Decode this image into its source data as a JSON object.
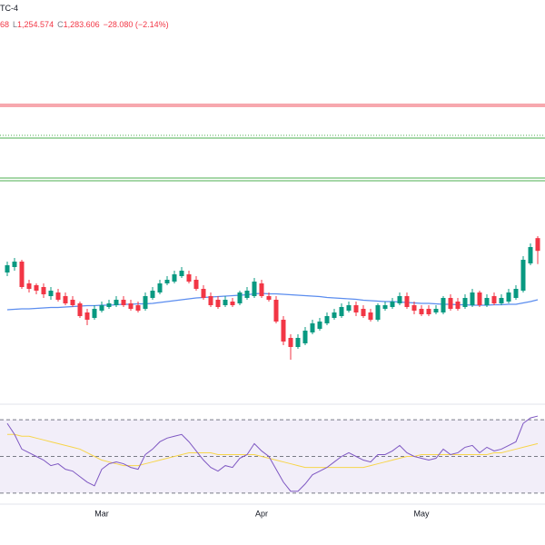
{
  "chart_data": [
    {
      "type": "candlestick",
      "timezone": "TC-4",
      "high_fragment": "68",
      "low_label": "L",
      "low_value": "1,254.574",
      "close_label": "C",
      "close_value": "1,283.606",
      "change": "−28.080 (−2.14%)",
      "up_color": "#089981",
      "down_color": "#f23645",
      "ylim": [
        956,
        1836
      ],
      "open": [
        1236,
        1248,
        1260,
        1212,
        1208,
        1204,
        1184,
        1192,
        1184,
        1176,
        1168,
        1148,
        1136,
        1152,
        1160,
        1164,
        1176,
        1168,
        1164,
        1156,
        1180,
        1192,
        1212,
        1216,
        1228,
        1232,
        1220,
        1200,
        1184,
        1176,
        1164,
        1172,
        1168,
        1180,
        1184,
        1212,
        1184,
        1176,
        1132,
        1092,
        1072,
        1080,
        1104,
        1112,
        1124,
        1136,
        1140,
        1152,
        1164,
        1156,
        1148,
        1132,
        1156,
        1160,
        1168,
        1184,
        1164,
        1156,
        1156,
        1148,
        1148,
        1180,
        1172,
        1160,
        1164,
        1192,
        1164,
        1184,
        1168,
        1172,
        1180,
        1196,
        1256,
        1311.686
      ],
      "high": [
        1260,
        1268,
        1264,
        1220,
        1212,
        1212,
        1204,
        1200,
        1192,
        1184,
        1172,
        1156,
        1164,
        1172,
        1176,
        1184,
        1184,
        1176,
        1172,
        1192,
        1204,
        1220,
        1228,
        1240,
        1248,
        1240,
        1228,
        1208,
        1192,
        1184,
        1184,
        1180,
        1196,
        1204,
        1224,
        1220,
        1192,
        1184,
        1140,
        1100,
        1100,
        1116,
        1132,
        1136,
        1148,
        1156,
        1168,
        1172,
        1172,
        1164,
        1156,
        1168,
        1172,
        1180,
        1192,
        1192,
        1172,
        1164,
        1164,
        1164,
        1184,
        1188,
        1180,
        1188,
        1200,
        1196,
        1188,
        1192,
        1188,
        1200,
        1208,
        1272,
        1300,
        1316
      ],
      "low": [
        1228,
        1240,
        1200,
        1192,
        1188,
        1180,
        1176,
        1172,
        1164,
        1160,
        1136,
        1120,
        1132,
        1148,
        1156,
        1160,
        1160,
        1152,
        1148,
        1152,
        1176,
        1188,
        1208,
        1212,
        1224,
        1212,
        1196,
        1176,
        1160,
        1156,
        1160,
        1160,
        1164,
        1176,
        1180,
        1180,
        1172,
        1124,
        1076,
        1044,
        1068,
        1076,
        1100,
        1108,
        1120,
        1132,
        1136,
        1148,
        1140,
        1136,
        1128,
        1128,
        1152,
        1156,
        1164,
        1156,
        1144,
        1140,
        1140,
        1144,
        1144,
        1152,
        1152,
        1156,
        1160,
        1160,
        1160,
        1164,
        1164,
        1168,
        1176,
        1192,
        1252,
        1254.574
      ],
      "close": [
        1252,
        1260,
        1204,
        1200,
        1196,
        1188,
        1196,
        1176,
        1168,
        1164,
        1140,
        1132,
        1156,
        1164,
        1168,
        1176,
        1164,
        1156,
        1152,
        1184,
        1196,
        1212,
        1220,
        1232,
        1240,
        1216,
        1200,
        1180,
        1164,
        1160,
        1176,
        1164,
        1192,
        1196,
        1216,
        1184,
        1176,
        1128,
        1084,
        1072,
        1092,
        1108,
        1124,
        1128,
        1140,
        1148,
        1160,
        1164,
        1148,
        1140,
        1132,
        1164,
        1164,
        1172,
        1184,
        1160,
        1152,
        1144,
        1144,
        1156,
        1180,
        1156,
        1156,
        1180,
        1192,
        1164,
        1180,
        1168,
        1180,
        1192,
        1200,
        1264,
        1292,
        1283.606
      ],
      "series": [
        {
          "color": "#5b8def",
          "values": [
            1154,
            1155,
            1156,
            1156,
            1157,
            1158,
            1159,
            1159,
            1160,
            1161,
            1162,
            1163,
            1163,
            1164,
            1164,
            1165,
            1166,
            1166,
            1167,
            1167,
            1168,
            1170,
            1172,
            1174,
            1176,
            1178,
            1180,
            1181,
            1182,
            1183,
            1184,
            1185,
            1186,
            1187,
            1189,
            1190,
            1189,
            1189,
            1188,
            1187,
            1186,
            1185,
            1184,
            1183,
            1181,
            1180,
            1179,
            1178,
            1177,
            1175,
            1174,
            1173,
            1172,
            1172,
            1171,
            1170,
            1169,
            1168,
            1168,
            1167,
            1166,
            1166,
            1165,
            1165,
            1164,
            1164,
            1164,
            1165,
            1165,
            1166,
            1166,
            1169,
            1172,
            1176
          ]
        }
      ],
      "levels": [
        {
          "value": 1604,
          "color": "#f7a8ae",
          "style": "thick"
        },
        {
          "value": 1538,
          "color": "#4caf50",
          "style": "dotted"
        },
        {
          "value": 1532,
          "color": "#4caf50",
          "style": "solid"
        },
        {
          "value": 1444,
          "color": "#4caf50",
          "style": "solid"
        },
        {
          "value": 1438,
          "color": "#4caf50",
          "style": "solid"
        }
      ]
    },
    {
      "type": "line",
      "categories": [
        null,
        null,
        null,
        null,
        null,
        null,
        null,
        null,
        null,
        null,
        null,
        null,
        null,
        "Mar",
        null,
        null,
        null,
        null,
        null,
        null,
        null,
        null,
        null,
        null,
        null,
        null,
        null,
        null,
        null,
        null,
        null,
        null,
        null,
        null,
        null,
        "Apr",
        null,
        null,
        null,
        null,
        null,
        null,
        null,
        null,
        null,
        null,
        null,
        null,
        null,
        null,
        null,
        null,
        null,
        null,
        null,
        null,
        null,
        "May",
        null,
        null,
        null,
        null,
        null,
        null,
        null,
        null,
        null,
        null,
        null,
        null,
        null,
        null,
        null,
        null
      ],
      "ylim": [
        24,
        76
      ],
      "levels": [
        70,
        50,
        30
      ],
      "band_color": "#7e57c2",
      "series": [
        {
          "color": "#7e57c2",
          "values": [
            68,
            62,
            54,
            52,
            50,
            48,
            45,
            46,
            43,
            42,
            39,
            36,
            34,
            43,
            46,
            47,
            46,
            44,
            43,
            51,
            54,
            58,
            60,
            61,
            62,
            58,
            53,
            48,
            44,
            42,
            45,
            44,
            49,
            51,
            57,
            53,
            50,
            43,
            36,
            31,
            31,
            35,
            40,
            42,
            44,
            47,
            50,
            52,
            50,
            48,
            47,
            51,
            51,
            53,
            56,
            52,
            50,
            49,
            48,
            49,
            54,
            51,
            52,
            55,
            56,
            52,
            55,
            53,
            54,
            56,
            58,
            68,
            71,
            72
          ]
        },
        {
          "color": "#f7d54a",
          "values": [
            62,
            62,
            61,
            61,
            60,
            59,
            58,
            57,
            56,
            55,
            54,
            52,
            50,
            48,
            47,
            46,
            45,
            45,
            45,
            46,
            47,
            48,
            49,
            50,
            51,
            52,
            52,
            52,
            52,
            51,
            51,
            51,
            51,
            51,
            51,
            50,
            49,
            48,
            47,
            46,
            45,
            44,
            44,
            44,
            44,
            44,
            44,
            44,
            44,
            44,
            45,
            46,
            47,
            48,
            49,
            50,
            50,
            51,
            51,
            51,
            51,
            51,
            51,
            51,
            51,
            51,
            51,
            52,
            52,
            53,
            54,
            55,
            56,
            57
          ]
        }
      ]
    }
  ]
}
